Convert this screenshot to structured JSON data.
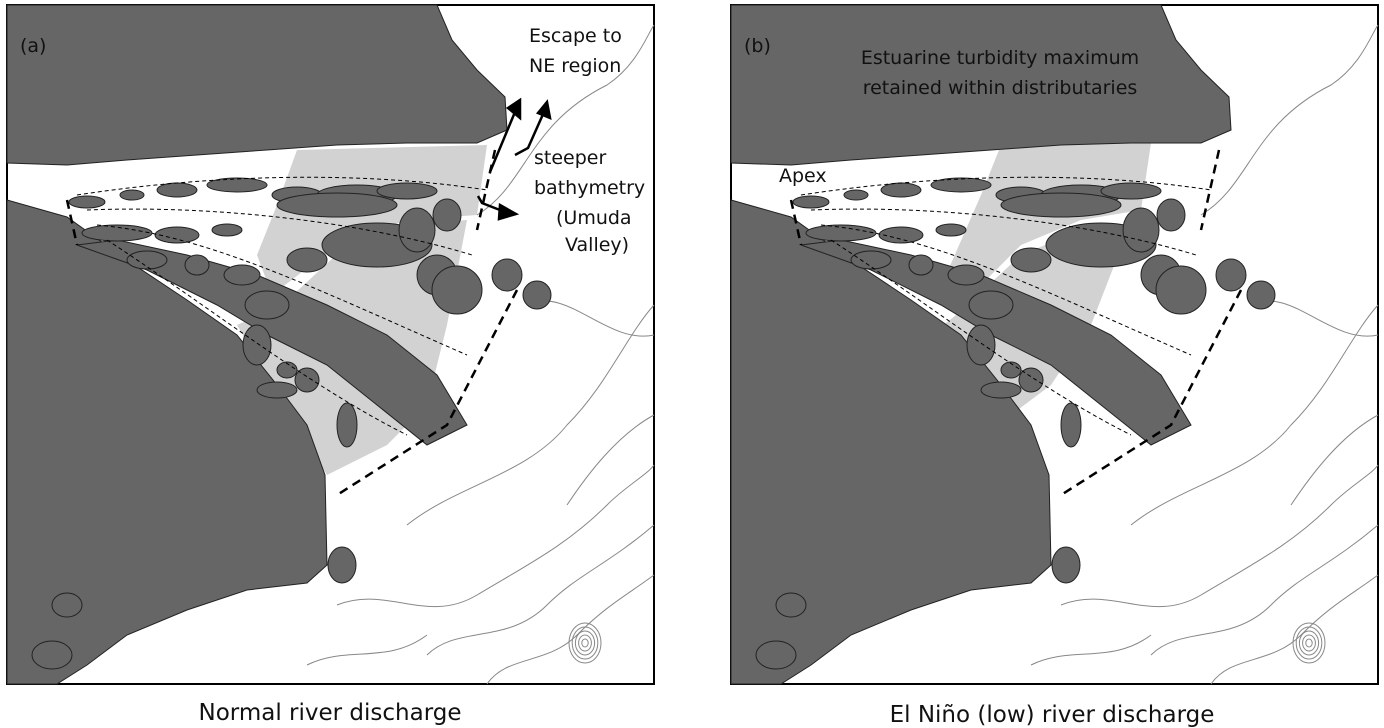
{
  "panels": [
    {
      "label": "(a)",
      "caption": "Normal river discharge",
      "annotations": [
        {
          "lines": [
            "Escape to",
            "NE region"
          ]
        },
        {
          "lines": [
            "steeper",
            "bathymetry",
            "(Umuda",
            "Valley)"
          ]
        }
      ]
    },
    {
      "label": "(b)",
      "caption": "El Niño (low) river discharge",
      "annotations": [
        {
          "lines": [
            "Estuarine turbidity maximum",
            "retained within distributaries"
          ]
        },
        {
          "lines": [
            "Apex"
          ]
        }
      ]
    }
  ]
}
